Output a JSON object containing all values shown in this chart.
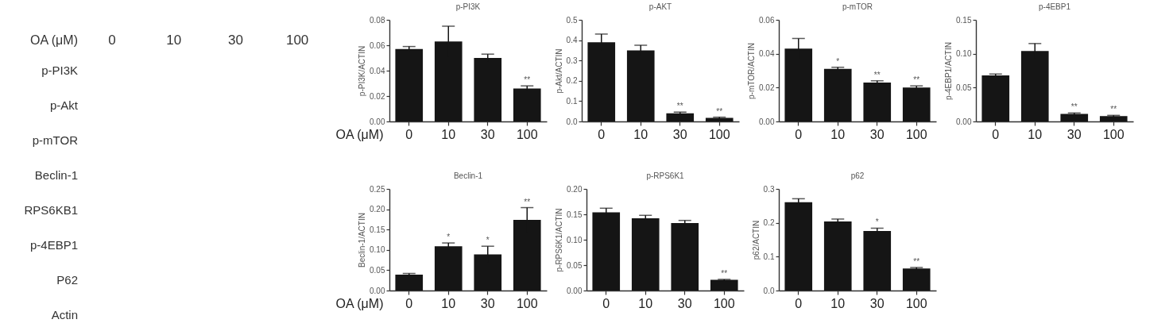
{
  "chart_data": [
    {
      "type": "other",
      "xlabel": "OA (μM)",
      "categories": [
        "0",
        "10",
        "30",
        "100"
      ],
      "y_categories": [
        "p-PI3K",
        "p-Akt",
        "p-mTOR",
        "Beclin-1",
        "RPS6KB1",
        "p-4EBP1",
        "P62",
        "Actin"
      ]
    },
    {
      "type": "bar",
      "title": "p-PI3K",
      "xlabel": "OA (μM)",
      "ylabel": "p-PI3K/ACTIN",
      "categories": [
        "0",
        "10",
        "30",
        "100"
      ],
      "values": [
        0.057,
        0.063,
        0.05,
        0.026
      ],
      "errors": [
        0.002,
        0.012,
        0.003,
        0.002
      ],
      "color": "#151515",
      "ylim": [
        0,
        0.08
      ],
      "yticks": [
        {
          "value": 0,
          "label": "0.00"
        },
        0.02,
        0.04,
        0.06,
        0.08
      ],
      "annotations": [
        {
          "text": "**",
          "x": "100",
          "y": 0.028
        }
      ]
    },
    {
      "type": "bar",
      "title": "p-AKT",
      "ylabel": "p-Akt/ACTIN",
      "categories": [
        "0",
        "10",
        "30",
        "100"
      ],
      "values": [
        0.39,
        0.35,
        0.04,
        0.018
      ],
      "errors": [
        0.04,
        0.025,
        0.006,
        0.003
      ],
      "color": "#151515",
      "ylim": [
        0,
        0.5
      ],
      "yticks": [
        {
          "value": 0,
          "label": "0.0"
        },
        0.1,
        0.2,
        0.3,
        0.4,
        0.5
      ],
      "annotations": [
        {
          "text": "**",
          "x": "30",
          "y": 0.046
        },
        {
          "text": "**",
          "x": "100",
          "y": 0.021
        }
      ]
    },
    {
      "type": "bar",
      "title": "p-mTOR",
      "ylabel": "p-mTOR/ACTIN",
      "categories": [
        "0",
        "10",
        "30",
        "100"
      ],
      "values": [
        0.043,
        0.031,
        0.023,
        0.02
      ],
      "errors": [
        0.006,
        0.001,
        0.001,
        0.001
      ],
      "color": "#151515",
      "ylim": [
        0,
        0.06
      ],
      "yticks": [
        {
          "value": 0,
          "label": "0.00"
        },
        0.02,
        0.04,
        0.06
      ],
      "annotations": [
        {
          "text": "*",
          "x": "10",
          "y": 0.032
        },
        {
          "text": "**",
          "x": "30",
          "y": 0.024
        },
        {
          "text": "**",
          "x": "100",
          "y": 0.021
        }
      ]
    },
    {
      "type": "bar",
      "title": "p-4EBP1",
      "ylabel": "p-4EBP1/ACTIN",
      "categories": [
        "0",
        "10",
        "30",
        "100"
      ],
      "values": [
        0.068,
        0.104,
        0.011,
        0.008
      ],
      "errors": [
        0.002,
        0.011,
        0.0015,
        0.001
      ],
      "color": "#151515",
      "ylim": [
        0,
        0.15
      ],
      "yticks": [
        {
          "value": 0,
          "label": "0.00"
        },
        0.05,
        {
          "value": 0.1,
          "label": "0.10"
        },
        0.15
      ],
      "annotations": [
        {
          "text": "**",
          "x": "30",
          "y": 0.0125
        },
        {
          "text": "**",
          "x": "100",
          "y": 0.009
        }
      ]
    },
    {
      "type": "bar",
      "title": "Beclin-1",
      "xlabel": "OA (μM)",
      "ylabel": "Beclin-1/ACTIN",
      "categories": [
        "0",
        "10",
        "30",
        "100"
      ],
      "values": [
        0.039,
        0.109,
        0.089,
        0.174
      ],
      "errors": [
        0.003,
        0.008,
        0.02,
        0.03
      ],
      "color": "#151515",
      "ylim": [
        0,
        0.25
      ],
      "yticks": [
        {
          "value": 0,
          "label": "0.00"
        },
        0.05,
        {
          "value": 0.1,
          "label": "0.10"
        },
        0.15,
        {
          "value": 0.2,
          "label": "0.20"
        },
        0.25
      ],
      "annotations": [
        {
          "text": "*",
          "x": "10",
          "y": 0.117
        },
        {
          "text": "*",
          "x": "30",
          "y": 0.109
        },
        {
          "text": "**",
          "x": "100",
          "y": 0.204
        }
      ]
    },
    {
      "type": "bar",
      "title": "p-RPS6K1",
      "ylabel": "p-RPS6K1/ACTIN",
      "categories": [
        "0",
        "10",
        "30",
        "100"
      ],
      "values": [
        0.154,
        0.142,
        0.133,
        0.021
      ],
      "errors": [
        0.008,
        0.006,
        0.005,
        0.001
      ],
      "color": "#151515",
      "ylim": [
        0,
        0.2
      ],
      "yticks": [
        {
          "value": 0,
          "label": "0.00"
        },
        0.05,
        {
          "value": 0.1,
          "label": "0.10"
        },
        0.15,
        {
          "value": 0.2,
          "label": "0.20"
        }
      ],
      "annotations": [
        {
          "text": "**",
          "x": "100",
          "y": 0.022
        }
      ]
    },
    {
      "type": "bar",
      "title": "p62",
      "ylabel": "p62/ACTIN",
      "categories": [
        "0",
        "10",
        "30",
        "100"
      ],
      "values": [
        0.261,
        0.204,
        0.176,
        0.065
      ],
      "errors": [
        0.01,
        0.007,
        0.008,
        0.003
      ],
      "color": "#151515",
      "ylim": [
        0,
        0.3
      ],
      "yticks": [
        {
          "value": 0,
          "label": "0.0"
        },
        0.1,
        0.2,
        0.3
      ],
      "annotations": [
        {
          "text": "*",
          "x": "30",
          "y": 0.184
        },
        {
          "text": "**",
          "x": "100",
          "y": 0.068
        }
      ]
    }
  ]
}
